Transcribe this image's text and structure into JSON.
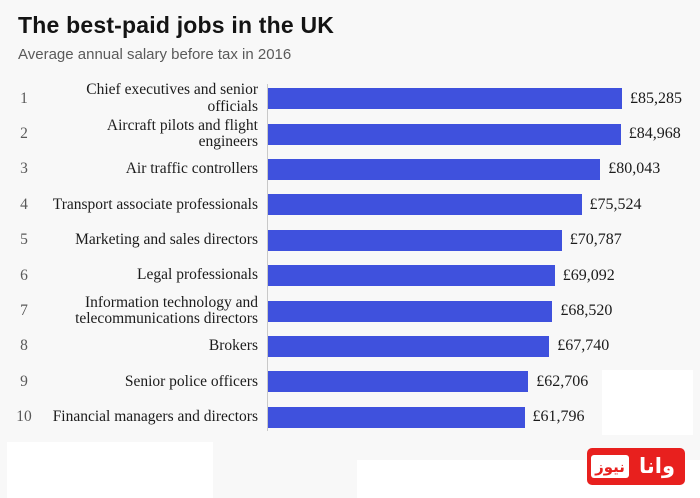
{
  "header": {
    "title": "The best-paid jobs in the UK",
    "subtitle": "Average annual salary before tax in 2016"
  },
  "chart_data": {
    "type": "bar",
    "orientation": "horizontal",
    "title": "The best-paid jobs in the UK",
    "subtitle": "Average annual salary before tax in 2016",
    "ranks": [
      "1",
      "2",
      "3",
      "4",
      "5",
      "6",
      "7",
      "8",
      "9",
      "10"
    ],
    "categories": [
      "Chief executives and senior officials",
      "Aircraft pilots and flight engineers",
      "Air traffic controllers",
      "Transport associate professionals",
      "Marketing and sales directors",
      "Legal professionals",
      "Information technology and telecommunications directors",
      "Brokers",
      "Senior police officers",
      "Financial managers and directors"
    ],
    "values": [
      85285,
      84968,
      80043,
      75524,
      70787,
      69092,
      68520,
      67740,
      62706,
      61796
    ],
    "value_labels": [
      "£85,285",
      "£84,968",
      "£80,043",
      "£75,524",
      "£70,787",
      "£69,092",
      "£68,520",
      "£67,740",
      "£62,706",
      "£61,796"
    ],
    "xlim": [
      0,
      85285
    ],
    "grid": false,
    "legend": false,
    "bar_color": "#3f51dd",
    "axis_color": "#c9c9c9"
  },
  "watermark": {
    "brand_full": "وانا نیوز",
    "red_segment_text": "وانا",
    "white_box_text": "نیوز",
    "color": "#e8201e"
  }
}
